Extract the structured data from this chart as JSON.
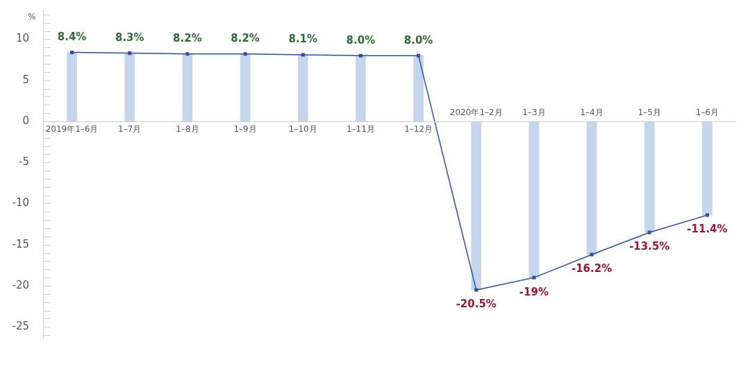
{
  "chart_data": {
    "type": "bar",
    "ylabel": "%",
    "categories": [
      "2019年1–6月",
      "1–7月",
      "1–8月",
      "1–9月",
      "1–10月",
      "1–11月",
      "1–12月",
      "2020年1–2月",
      "1–3月",
      "1–4月",
      "1–5月",
      "1–6月"
    ],
    "series": [
      {
        "color": "#c5d5ec",
        "values": [
          8.4,
          8.3,
          8.2,
          8.2,
          8.1,
          8.0,
          8.0,
          -20.5,
          -19,
          -16.2,
          -13.5,
          -11.4
        ]
      },
      {
        "type": "line",
        "color": "#2b4fa0",
        "marker": "square",
        "values": [
          8.4,
          8.3,
          8.2,
          8.2,
          8.1,
          8.0,
          8.0,
          -20.5,
          -19,
          -16.2,
          -13.5,
          -11.4
        ],
        "value_labels": [
          "8.4%",
          "8.3%",
          "8.2%",
          "8.2%",
          "8.1%",
          "8.0%",
          "8.0%",
          "-20.5%",
          "-19%",
          "-16.2%",
          "-13.5%",
          "-11.4%"
        ]
      }
    ],
    "ylim": [
      -26.5,
      13.5
    ],
    "yticks": [
      {
        "value": 13,
        "label": null
      },
      {
        "value": 12,
        "label": null
      },
      {
        "value": 11,
        "label": null
      },
      10,
      {
        "value": 9,
        "label": null
      },
      {
        "value": 8,
        "label": null
      },
      {
        "value": 7,
        "label": null
      },
      {
        "value": 6,
        "label": null
      },
      5,
      {
        "value": 4,
        "label": null
      },
      {
        "value": 3,
        "label": null
      },
      {
        "value": 2,
        "label": null
      },
      {
        "value": 1,
        "label": null
      },
      0,
      {
        "value": -1,
        "label": null
      },
      {
        "value": -2,
        "label": null
      },
      {
        "value": -3,
        "label": null
      },
      {
        "value": -4,
        "label": null
      },
      -5,
      {
        "value": -6,
        "label": null
      },
      {
        "value": -7,
        "label": null
      },
      {
        "value": -8,
        "label": null
      },
      {
        "value": -9,
        "label": null
      },
      -10,
      {
        "value": -11,
        "label": null
      },
      {
        "value": -12,
        "label": null
      },
      {
        "value": -13,
        "label": null
      },
      {
        "value": -14,
        "label": null
      },
      -15,
      {
        "value": -16,
        "label": null
      },
      {
        "value": -17,
        "label": null
      },
      {
        "value": -18,
        "label": null
      },
      {
        "value": -19,
        "label": null
      },
      -20,
      {
        "value": -21,
        "label": null
      },
      {
        "value": -22,
        "label": null
      },
      {
        "value": -23,
        "label": null
      },
      {
        "value": -24,
        "label": null
      },
      -25,
      {
        "value": -26,
        "label": null
      }
    ],
    "grid": false,
    "legend": false
  }
}
